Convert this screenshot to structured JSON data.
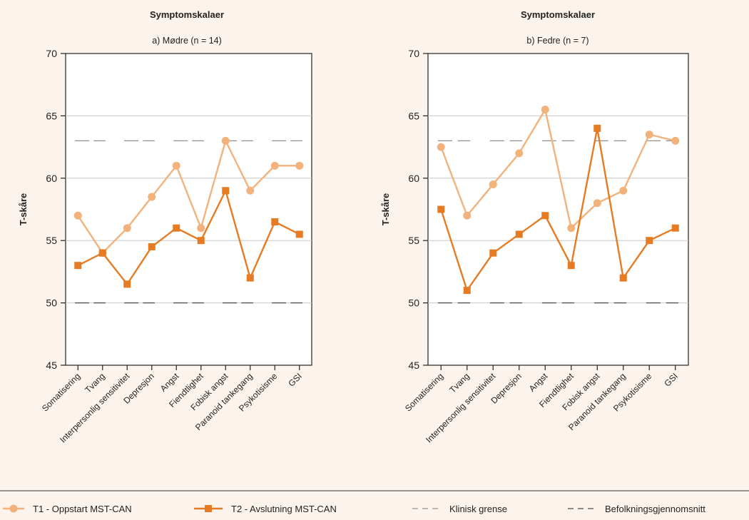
{
  "colors": {
    "background": "#fcf3ec",
    "t1": "#f3b27c",
    "t2": "#e67b24",
    "clinical": "#909090",
    "population": "#4a4a4a",
    "grid": "#c8c8c8",
    "separator": "#5a5a5a"
  },
  "chart_data": [
    {
      "type": "line",
      "title": "Symptomskalaer",
      "subtitle": "a) Mødre (n = 14)",
      "ylabel": "T-skåre",
      "ylim": [
        45,
        70
      ],
      "yticks": [
        "45",
        "50",
        "55",
        "60",
        "65",
        "70"
      ],
      "grid": true,
      "categories": [
        "Somatisering",
        "Tvang",
        "Interpersonlig sensitivitet",
        "Depresjon",
        "Angst",
        "Fiendtlighet",
        "Fobisk angst",
        "Paranoid tankegang",
        "Psykotisisme",
        "GSI"
      ],
      "series": [
        {
          "name": "T1 - Oppstart MST-CAN",
          "marker": "circle",
          "values": [
            57,
            54,
            56,
            58.5,
            61,
            56,
            63,
            59,
            61,
            61
          ]
        },
        {
          "name": "T2 - Avslutning MST-CAN",
          "marker": "square",
          "values": [
            53,
            54,
            51.5,
            54.5,
            56,
            55,
            59,
            52,
            56.5,
            55.5
          ]
        }
      ],
      "reference_lines": {
        "clinical": 63,
        "population": 50
      }
    },
    {
      "type": "line",
      "title": "Symptomskalaer",
      "subtitle": "b) Fedre (n = 7)",
      "ylabel": "T-skåre",
      "ylim": [
        45,
        70
      ],
      "yticks": [
        "45",
        "50",
        "55",
        "60",
        "65",
        "70"
      ],
      "grid": true,
      "categories": [
        "Somatisering",
        "Tvang",
        "Interpersonlig sensitivitet",
        "Depresjon",
        "Angst",
        "Fiendtlighet",
        "Fobisk angst",
        "Paranoid tankegang",
        "Psykotisisme",
        "GSI"
      ],
      "series": [
        {
          "name": "T1 - Oppstart MST-CAN",
          "marker": "circle",
          "values": [
            62.5,
            57,
            59.5,
            62,
            65.5,
            56,
            58,
            59,
            63.5,
            63
          ]
        },
        {
          "name": "T2 - Avslutning MST-CAN",
          "marker": "square",
          "values": [
            57.5,
            51,
            54,
            55.5,
            57,
            53,
            64,
            52,
            55,
            56
          ]
        }
      ],
      "reference_lines": {
        "clinical": 63,
        "population": 50
      }
    }
  ],
  "legend": {
    "placement": "bottom",
    "items": [
      {
        "label": "T1 - Oppstart MST-CAN",
        "kind": "t1"
      },
      {
        "label": "T2 - Avslutning MST-CAN",
        "kind": "t2"
      },
      {
        "label": "Klinisk grense",
        "kind": "clinical"
      },
      {
        "label": "Befolkningsgjennomsnitt",
        "kind": "population"
      }
    ]
  }
}
